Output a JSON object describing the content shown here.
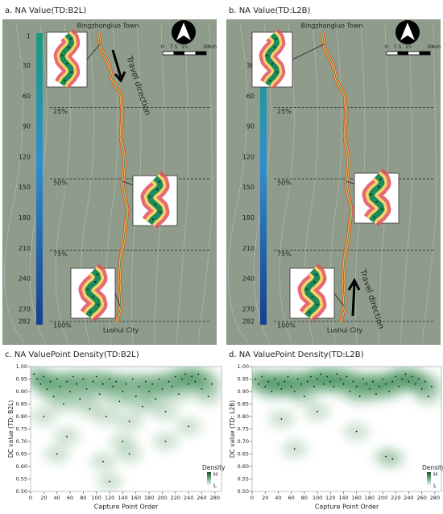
{
  "maps": [
    {
      "title": "a. NA Value(TD:B2L)",
      "start_label": "Bingzhongluo Town",
      "end_label": "Lushui City",
      "direction_label": "Travel direction",
      "scale_ticks": [
        0,
        7.5,
        15,
        30
      ],
      "scale_unit": "km",
      "colorbar_ticks": [
        1,
        30,
        60,
        90,
        120,
        150,
        180,
        210,
        240,
        270,
        282
      ],
      "percent_marks": [
        {
          "value": 25,
          "label": "25%"
        },
        {
          "value": 50,
          "label": "50%"
        },
        {
          "value": 75,
          "label": "75%"
        },
        {
          "value": 100,
          "label": "100%"
        }
      ]
    },
    {
      "title": "b. NA Value(TD:L2B)",
      "start_label": "Bingzhongluo Town",
      "end_label": "Lushui City",
      "direction_label": "Travel direction",
      "scale_ticks": [
        0,
        7.5,
        15,
        30
      ],
      "scale_unit": "km",
      "colorbar_ticks": [
        1,
        30,
        60,
        90,
        120,
        150,
        180,
        210,
        240,
        270,
        282
      ],
      "percent_marks": [
        {
          "value": 25,
          "label": "25%"
        },
        {
          "value": 50,
          "label": "50%"
        },
        {
          "value": 75,
          "label": "75%"
        },
        {
          "value": 100,
          "label": "100%"
        }
      ]
    }
  ],
  "chart_data": [
    {
      "type": "density",
      "title": "c. NA ValuePoint Density(TD:B2L)",
      "x_label": "Capture Point Order",
      "y_label": "DC value (TD: B2L)",
      "color": "#1f7a3c",
      "legend_title": "Density",
      "legend_high": "H",
      "legend_low": "L",
      "x": [
        5,
        10,
        15,
        20,
        25,
        30,
        35,
        40,
        45,
        50,
        55,
        60,
        65,
        70,
        75,
        80,
        85,
        90,
        95,
        100,
        105,
        110,
        115,
        120,
        125,
        130,
        135,
        140,
        145,
        150,
        155,
        160,
        165,
        170,
        175,
        180,
        185,
        190,
        195,
        200,
        205,
        210,
        215,
        220,
        225,
        230,
        235,
        240,
        245,
        250,
        255,
        260,
        265,
        270,
        275,
        20,
        40,
        55,
        110,
        150,
        120,
        205,
        140,
        240
      ],
      "values": [
        0.97,
        0.95,
        0.93,
        0.96,
        0.91,
        0.94,
        0.88,
        0.95,
        0.92,
        0.85,
        0.94,
        0.9,
        0.96,
        0.93,
        0.87,
        0.95,
        0.91,
        0.83,
        0.94,
        0.96,
        0.89,
        0.93,
        0.8,
        0.95,
        0.92,
        0.94,
        0.86,
        0.9,
        0.93,
        0.78,
        0.95,
        0.88,
        0.92,
        0.84,
        0.94,
        0.9,
        0.93,
        0.87,
        0.95,
        0.91,
        0.82,
        0.94,
        0.92,
        0.96,
        0.89,
        0.95,
        0.97,
        0.93,
        0.96,
        0.94,
        0.97,
        0.91,
        0.95,
        0.88,
        0.93,
        0.8,
        0.65,
        0.72,
        0.62,
        0.65,
        0.54,
        0.7,
        0.7,
        0.76
      ],
      "xlim": [
        0,
        290
      ],
      "xticks": [
        0,
        20,
        40,
        60,
        80,
        100,
        120,
        140,
        160,
        180,
        200,
        220,
        240,
        260,
        280
      ],
      "ylim": [
        0.5,
        1.0
      ],
      "yticks": [
        {
          "value": 0.5,
          "label": "0.50"
        },
        {
          "value": 0.55,
          "label": "0.55"
        },
        {
          "value": 0.6,
          "label": "0.60"
        },
        {
          "value": 0.65,
          "label": "0.65"
        },
        {
          "value": 0.7,
          "label": "0.70"
        },
        {
          "value": 0.75,
          "label": "0.75"
        },
        {
          "value": 0.8,
          "label": "0.80"
        },
        {
          "value": 0.85,
          "label": "0.85"
        },
        {
          "value": 0.9,
          "label": "0.90"
        },
        {
          "value": 0.95,
          "label": "0.95"
        },
        {
          "value": 1.0,
          "label": "1.00"
        }
      ]
    },
    {
      "type": "density",
      "title": "d. NA ValuePoint Density(TD:L2B)",
      "x_label": "Capture Point Order",
      "y_label": "DC value (TD: L2B)",
      "color": "#1f7a3c",
      "legend_title": "Density",
      "legend_high": "H",
      "legend_low": "L",
      "x": [
        5,
        10,
        15,
        20,
        25,
        30,
        35,
        40,
        45,
        50,
        55,
        60,
        65,
        70,
        75,
        80,
        85,
        90,
        95,
        100,
        105,
        110,
        115,
        120,
        125,
        130,
        135,
        140,
        145,
        150,
        155,
        160,
        165,
        170,
        175,
        180,
        185,
        190,
        195,
        200,
        205,
        210,
        215,
        220,
        225,
        230,
        235,
        240,
        245,
        250,
        255,
        260,
        265,
        270,
        275,
        65,
        205,
        215,
        160,
        45,
        100
      ],
      "values": [
        0.95,
        0.93,
        0.96,
        0.92,
        0.94,
        0.9,
        0.95,
        0.93,
        0.91,
        0.94,
        0.96,
        0.92,
        0.9,
        0.95,
        0.93,
        0.88,
        0.94,
        0.96,
        0.92,
        0.95,
        0.97,
        0.93,
        0.96,
        0.94,
        0.92,
        0.97,
        0.95,
        0.93,
        0.96,
        0.9,
        0.94,
        0.92,
        0.88,
        0.95,
        0.93,
        0.91,
        0.94,
        0.89,
        0.92,
        0.95,
        0.93,
        0.9,
        0.94,
        0.96,
        0.92,
        0.95,
        0.97,
        0.94,
        0.96,
        0.93,
        0.95,
        0.91,
        0.94,
        0.88,
        0.92,
        0.67,
        0.64,
        0.63,
        0.74,
        0.79,
        0.82
      ],
      "xlim": [
        0,
        290
      ],
      "xticks": [
        0,
        20,
        40,
        60,
        80,
        100,
        120,
        140,
        160,
        180,
        200,
        220,
        240,
        260,
        280
      ],
      "ylim": [
        0.5,
        1.0
      ],
      "yticks": [
        {
          "value": 0.5,
          "label": "0.50"
        },
        {
          "value": 0.55,
          "label": "0.55"
        },
        {
          "value": 0.6,
          "label": "0.60"
        },
        {
          "value": 0.65,
          "label": "0.65"
        },
        {
          "value": 0.7,
          "label": "0.70"
        },
        {
          "value": 0.75,
          "label": "0.75"
        },
        {
          "value": 0.8,
          "label": "0.80"
        },
        {
          "value": 0.85,
          "label": "0.85"
        },
        {
          "value": 0.9,
          "label": "0.90"
        },
        {
          "value": 0.95,
          "label": "0.95"
        },
        {
          "value": 1.0,
          "label": "1.00"
        }
      ]
    }
  ]
}
